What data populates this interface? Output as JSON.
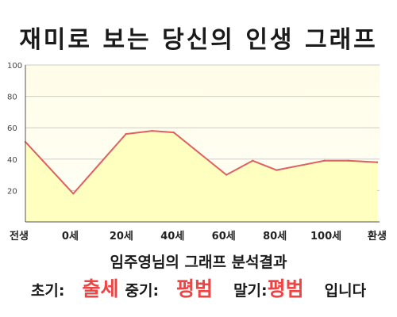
{
  "chart_data": {
    "type": "area",
    "title": "재미로 보는 당신의 인생 그래프",
    "x": [
      "전생",
      "0세",
      "20세",
      "40세",
      "60세",
      "80세",
      "100세",
      "환생"
    ],
    "series": [
      {
        "x_values": [
          -20,
          0,
          22,
          33,
          42,
          64,
          75,
          85,
          105,
          115,
          127
        ],
        "values": [
          51,
          18,
          56,
          58,
          57,
          30,
          39,
          33,
          39,
          39,
          38
        ]
      }
    ],
    "xlim": [
      -20,
      128
    ],
    "ylim": [
      0,
      100
    ],
    "yticks": [
      20,
      40,
      60,
      80,
      100
    ],
    "ytick_labels": [
      "20",
      "40",
      "60",
      "80",
      "100"
    ],
    "grid": true,
    "colors": {
      "line": "#e06060",
      "fill": "#ffffc0",
      "grid": "#cccccc"
    }
  },
  "result": {
    "title": "임주영님의 그래프 분석결과",
    "early_label": "초기:",
    "early_value": "출세",
    "mid_label": "중기:",
    "mid_value": "평범",
    "late_label": "말기:",
    "late_value": "평범",
    "suffix": "입니다",
    "value_color": "#ee4444"
  }
}
